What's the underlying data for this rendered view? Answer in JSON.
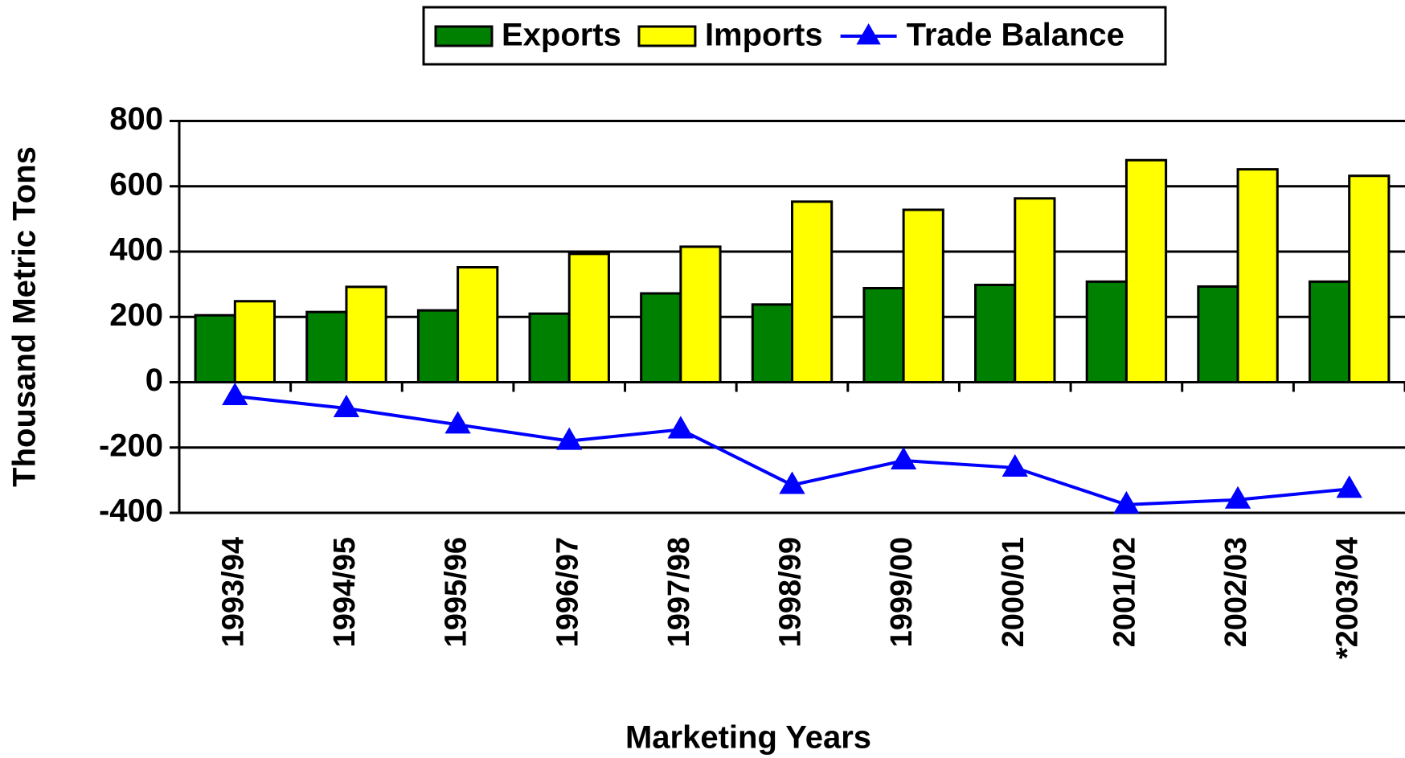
{
  "chart_data": {
    "type": "bar",
    "x_label": "Marketing Years",
    "y_label": "Thousand Metric Tons",
    "categories": [
      "1993/94",
      "1994/95",
      "1995/96",
      "1996/97",
      "1997/98",
      "1998/99",
      "1999/00",
      "2000/01",
      "2001/02",
      "2002/03",
      "*2003/04"
    ],
    "series": [
      {
        "name": "Exports",
        "type": "bar",
        "color": "#008000",
        "values": [
          205,
          215,
          220,
          210,
          272,
          238,
          288,
          298,
          308,
          293,
          308
        ]
      },
      {
        "name": "Imports",
        "type": "bar",
        "color": "#ffff00",
        "values": [
          248,
          292,
          352,
          393,
          415,
          553,
          528,
          563,
          680,
          652,
          632
        ]
      },
      {
        "name": "Trade Balance",
        "type": "line",
        "color": "#0000ff",
        "values": [
          -43,
          -80,
          -130,
          -180,
          -145,
          -315,
          -240,
          -262,
          -375,
          -360,
          -327
        ]
      }
    ],
    "ylim": [
      -400,
      800
    ],
    "yticks": [
      -400,
      -200,
      0,
      200,
      400,
      600,
      800
    ],
    "grid": true,
    "legend": "top"
  }
}
